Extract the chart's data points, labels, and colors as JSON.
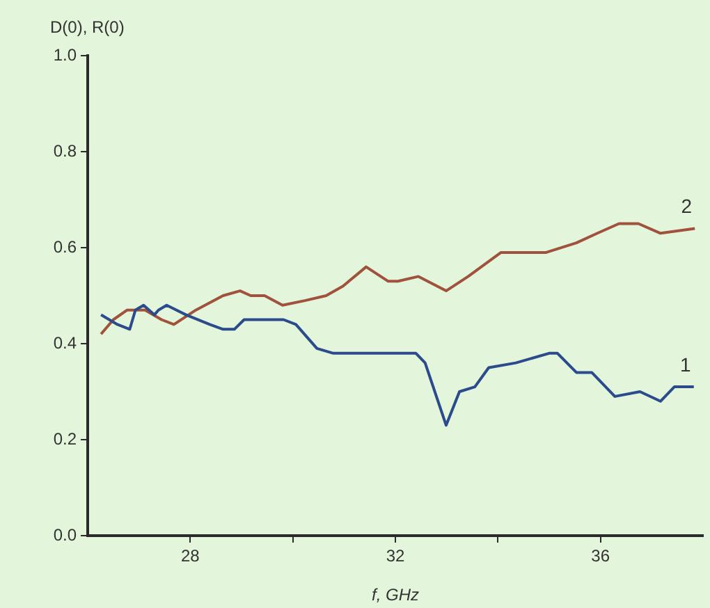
{
  "chart_data": {
    "type": "line",
    "xlabel": "f, GHz",
    "ylabel": "D(0), R(0)",
    "xlim": [
      26,
      38
    ],
    "ylim": [
      0,
      1
    ],
    "xticks": [
      28,
      {
        "value": 30,
        "label": null
      },
      32,
      {
        "value": 34,
        "label": null
      },
      36
    ],
    "yticks": [
      {
        "value": 0,
        "label": "0.0"
      },
      0.2,
      0.4,
      0.6,
      0.8,
      {
        "value": 1,
        "label": "1.0"
      }
    ],
    "grid": false,
    "legend": false,
    "marker": "none",
    "line_style": "solid",
    "series": [
      {
        "name": "1",
        "color": "#2b4b8c",
        "x": [
          26.26,
          26.58,
          26.82,
          26.93,
          27.09,
          27.3,
          27.38,
          27.54,
          27.92,
          28.38,
          28.64,
          28.86,
          29.05,
          29.26,
          29.58,
          29.82,
          30.06,
          30.47,
          30.79,
          31.24,
          31.67,
          32.13,
          32.4,
          32.58,
          32.99,
          33.25,
          33.55,
          33.82,
          34.35,
          35.0,
          35.16,
          35.53,
          35.83,
          36.28,
          36.77,
          37.17,
          37.44,
          37.82
        ],
        "values": [
          0.46,
          0.44,
          0.43,
          0.47,
          0.48,
          0.46,
          0.47,
          0.48,
          0.46,
          0.44,
          0.43,
          0.43,
          0.45,
          0.45,
          0.45,
          0.45,
          0.44,
          0.39,
          0.38,
          0.38,
          0.38,
          0.38,
          0.38,
          0.36,
          0.23,
          0.3,
          0.31,
          0.35,
          0.36,
          0.38,
          0.38,
          0.34,
          0.34,
          0.29,
          0.3,
          0.28,
          0.31,
          0.31
        ]
      },
      {
        "name": "2",
        "color": "#a0523c",
        "x": [
          26.26,
          26.5,
          26.77,
          27.12,
          27.44,
          27.68,
          28.11,
          28.64,
          28.97,
          29.18,
          29.45,
          29.8,
          30.25,
          30.65,
          30.98,
          31.43,
          31.86,
          32.05,
          32.45,
          32.99,
          33.42,
          34.06,
          34.46,
          34.94,
          35.53,
          35.94,
          36.36,
          36.74,
          37.17,
          37.84
        ],
        "values": [
          0.42,
          0.45,
          0.47,
          0.47,
          0.45,
          0.44,
          0.47,
          0.5,
          0.51,
          0.5,
          0.5,
          0.48,
          0.49,
          0.5,
          0.52,
          0.56,
          0.53,
          0.53,
          0.54,
          0.51,
          0.54,
          0.59,
          0.59,
          0.59,
          0.61,
          0.63,
          0.65,
          0.65,
          0.63,
          0.64
        ]
      }
    ]
  }
}
